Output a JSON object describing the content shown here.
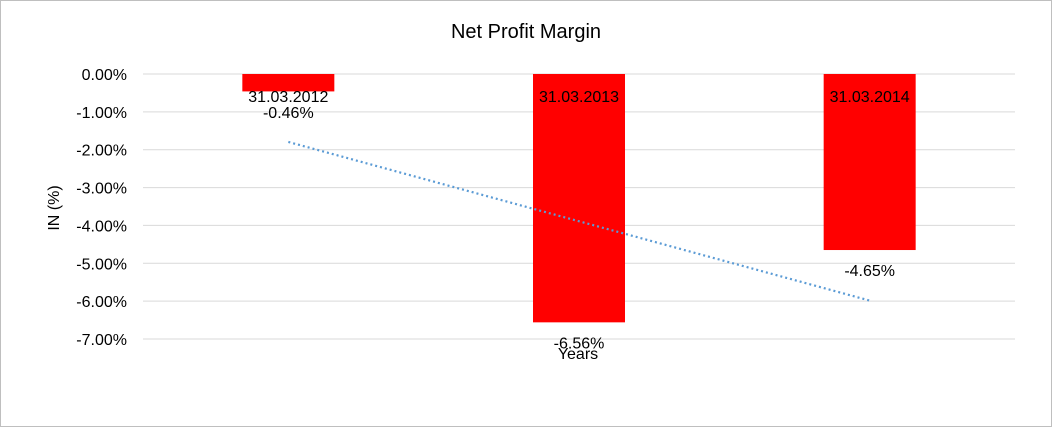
{
  "chart_data": {
    "type": "bar",
    "title": "Net Profit Margin",
    "xlabel": "Years",
    "ylabel": "IN (%)",
    "categories": [
      "31.03.2012",
      "31.03.2013",
      "31.03.2014"
    ],
    "values": [
      -0.46,
      -6.56,
      -4.65
    ],
    "data_labels": [
      "-0.46%",
      "-6.56%",
      "-4.65%"
    ],
    "ylim": [
      -7,
      0
    ],
    "yticks": [
      0,
      -1,
      -2,
      -3,
      -4,
      -5,
      -6,
      -7
    ],
    "ytick_labels": [
      "0.00%",
      "-1.00%",
      "-2.00%",
      "-3.00%",
      "-4.00%",
      "-5.00%",
      "-6.00%",
      "-7.00%"
    ],
    "grid": true,
    "bar_color": "#ff0000",
    "trendline": {
      "type": "linear",
      "color": "#5b9bd5",
      "style": "dotted"
    }
  }
}
